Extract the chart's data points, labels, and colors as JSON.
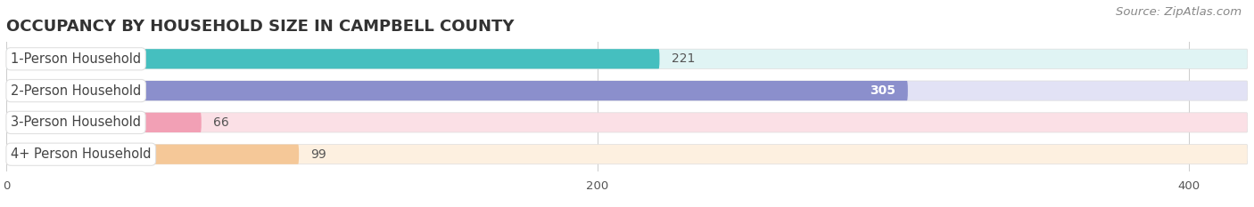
{
  "title": "OCCUPANCY BY HOUSEHOLD SIZE IN CAMPBELL COUNTY",
  "source": "Source: ZipAtlas.com",
  "categories": [
    "1-Person Household",
    "2-Person Household",
    "3-Person Household",
    "4+ Person Household"
  ],
  "values": [
    221,
    305,
    66,
    99
  ],
  "bar_colors": [
    "#45BFBF",
    "#8B8FCC",
    "#F2A0B5",
    "#F5C898"
  ],
  "bar_bg_colors": [
    "#E0F4F4",
    "#E2E2F5",
    "#FBE0E6",
    "#FDF0E0"
  ],
  "xlim": [
    0,
    420
  ],
  "xticks": [
    0,
    200,
    400
  ],
  "background_color": "#ffffff",
  "title_fontsize": 13,
  "label_fontsize": 10.5,
  "value_fontsize": 10,
  "source_fontsize": 9.5
}
